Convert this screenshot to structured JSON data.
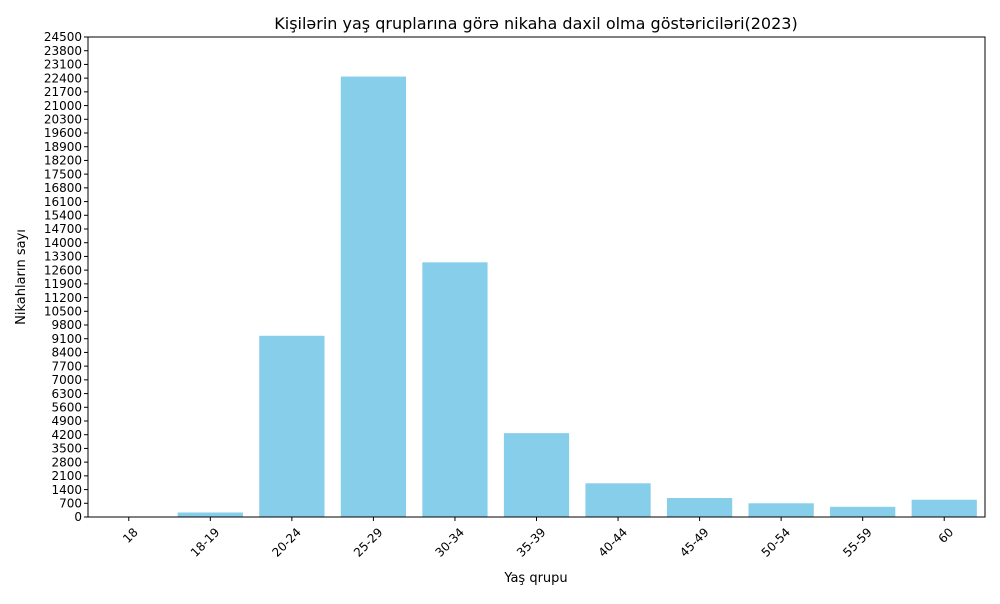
{
  "chart_data": {
    "type": "bar",
    "title": "Kişilərin yaş qruplarına görə nikaha daxil olma göstəriciləri(2023)",
    "xlabel": "Yaş qrupu",
    "ylabel": "Nikahların sayı",
    "categories": [
      "18",
      "18-19",
      "20-24",
      "25-29",
      "30-34",
      "35-39",
      "40-44",
      "45-49",
      "50-54",
      "55-59",
      "60"
    ],
    "values": [
      10,
      230,
      9250,
      22480,
      13000,
      4280,
      1720,
      970,
      700,
      520,
      880
    ],
    "ylim": [
      0,
      24500
    ],
    "yticks": [
      0,
      700,
      1400,
      2100,
      2800,
      3500,
      4200,
      4900,
      5600,
      6300,
      7000,
      7700,
      8400,
      9100,
      9800,
      10500,
      11200,
      11900,
      12600,
      13300,
      14000,
      14700,
      15400,
      16100,
      16800,
      17500,
      18200,
      18900,
      19600,
      20300,
      21000,
      21700,
      22400,
      23100,
      23800,
      24500
    ],
    "bar_color": "#87ceeb",
    "grid": false,
    "legend": "none",
    "xtick_rotation": 45
  }
}
